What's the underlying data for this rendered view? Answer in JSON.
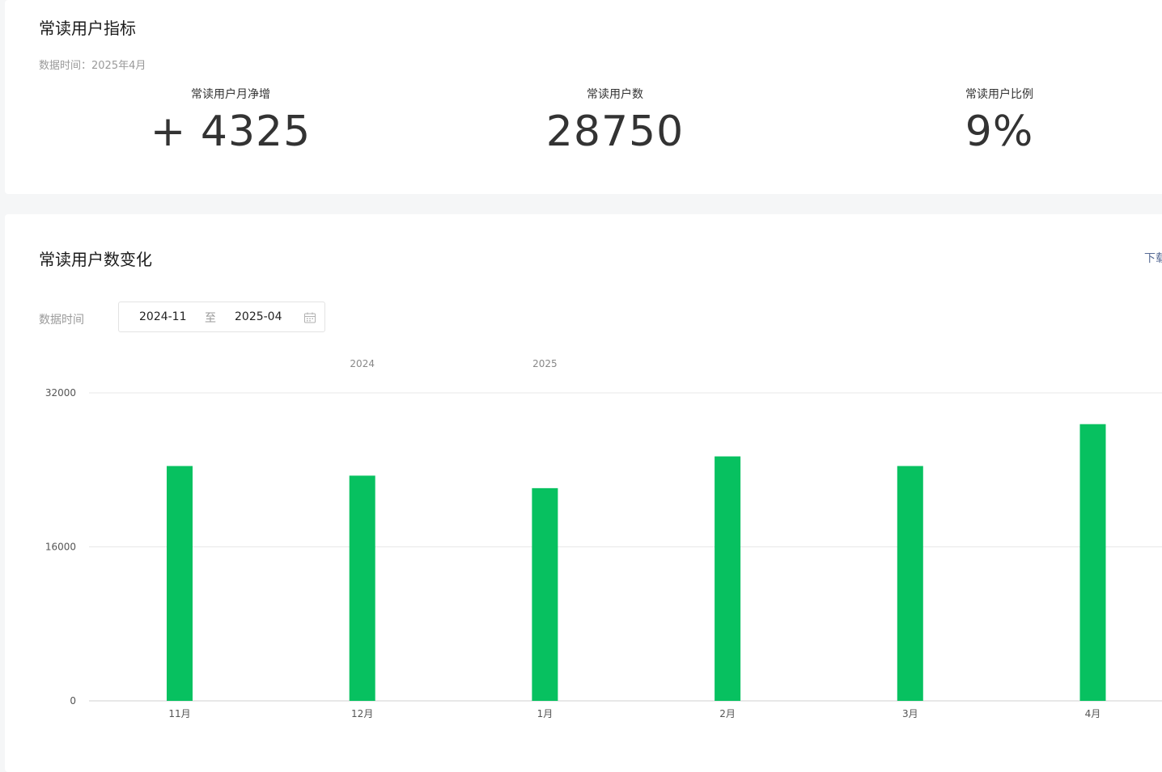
{
  "metrics_section": {
    "title": "常读用户指标",
    "data_time": "数据时间：2025年4月",
    "cards": [
      {
        "label": "常读用户月净增",
        "value": "+ 4325"
      },
      {
        "label": "常读用户数",
        "value": "28750"
      },
      {
        "label": "常读用户比例",
        "value": "9%"
      }
    ]
  },
  "trend_section": {
    "title": "常读用户数变化",
    "download_label": "下载",
    "filter": {
      "label": "数据时间",
      "start": "2024-11",
      "separator": "至",
      "end": "2025-04",
      "icon": "calendar-icon"
    }
  },
  "colors": {
    "bar": "#07c160",
    "grid": "#e8e8e8",
    "axis_text": "#555555",
    "year_text": "#888888"
  },
  "chart_data": {
    "type": "bar",
    "categories": [
      "11月",
      "12月",
      "1月",
      "2月",
      "3月",
      "4月"
    ],
    "year_labels": [
      {
        "text": "2024",
        "category_index": 1
      },
      {
        "text": "2025",
        "category_index": 2
      }
    ],
    "values": [
      24400,
      23400,
      22100,
      25400,
      24400,
      28750
    ],
    "ylim": [
      0,
      32000
    ],
    "yticks": [
      0,
      16000,
      32000
    ],
    "grid": true,
    "title": "",
    "xlabel": "",
    "ylabel": ""
  }
}
